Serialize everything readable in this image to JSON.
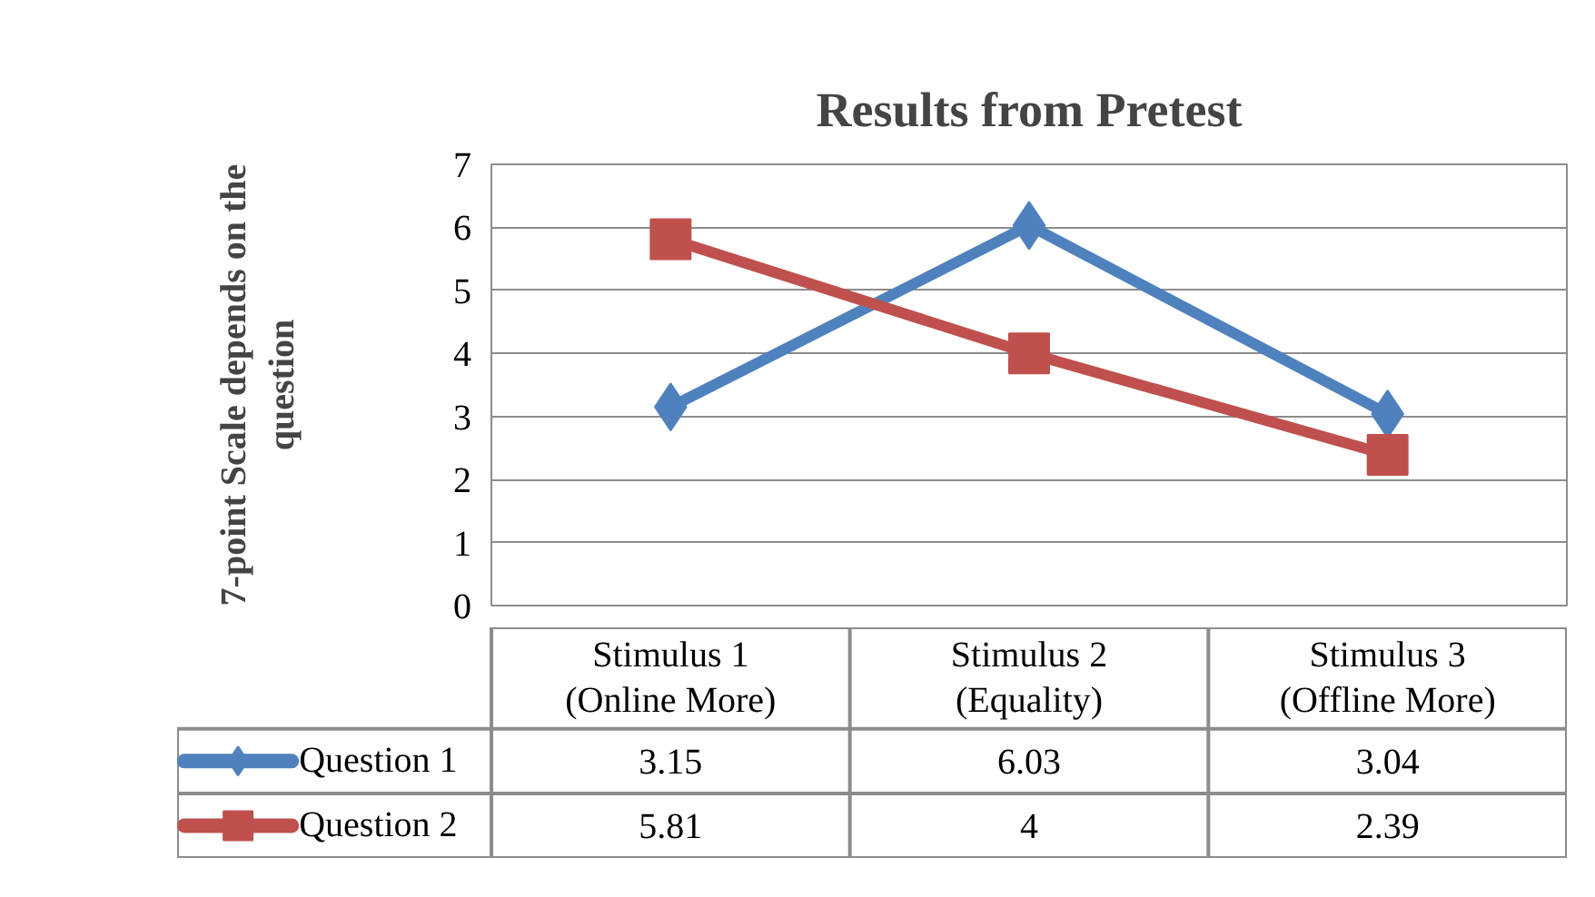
{
  "chart_data": {
    "type": "line",
    "title": "Results from Pretest",
    "ylabel": "7-point Scale depends on the question",
    "categories": [
      "Stimulus 1 (Online More)",
      "Stimulus 2 (Equality)",
      "Stimulus 3 (Offline More)"
    ],
    "series": [
      {
        "name": "Question 1",
        "color": "#4f81bd",
        "marker": "diamond",
        "values": [
          3.15,
          6.03,
          3.04
        ]
      },
      {
        "name": "Question 2",
        "color": "#c0504d",
        "marker": "square",
        "values": [
          5.81,
          4,
          2.39
        ]
      }
    ],
    "ylim": [
      0,
      7
    ],
    "yticks": [
      0,
      1,
      2,
      3,
      4,
      5,
      6,
      7
    ],
    "grid": "y",
    "legend": "bottom",
    "data_labels": true,
    "line_style": "solid"
  }
}
